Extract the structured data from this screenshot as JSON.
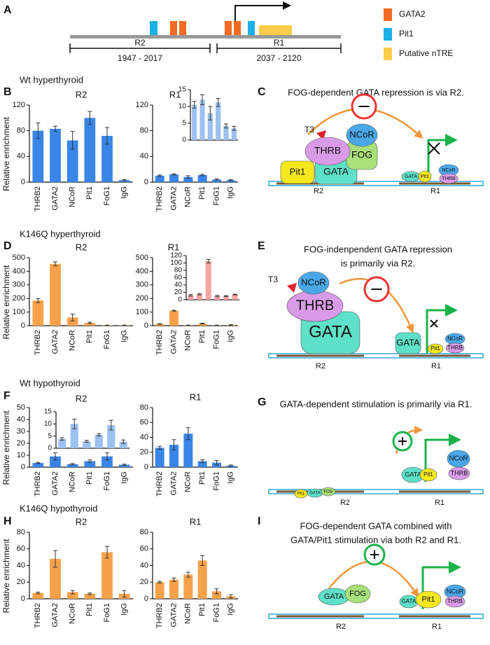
{
  "panel_labels": [
    "A",
    "B",
    "C",
    "D",
    "E",
    "F",
    "G",
    "H",
    "I"
  ],
  "row_labels": [
    "Wt hyperthyroid",
    "K146Q hyperthyroid",
    "Wt hypothyroid",
    "K146Q hypothyroid"
  ],
  "panel_a": {
    "regions": [
      {
        "name": "R2",
        "range": "1947 - 2017"
      },
      {
        "name": "R1",
        "range": "2037 - 2120"
      }
    ],
    "legend": [
      {
        "name": "GATA2",
        "color": "#f26b21"
      },
      {
        "name": "Pit1",
        "color": "#1ab0e6"
      },
      {
        "name": "Putative nTRE",
        "color": "#f9cc4a"
      }
    ]
  },
  "chart_data": [
    {
      "type": "bar",
      "title": "R2",
      "ylabel": "Relative enrichment",
      "categories": [
        "THRB2",
        "GATA2",
        "NCoR",
        "Pit1",
        "FoG1",
        "IgG"
      ],
      "values": [
        80,
        83,
        65,
        100,
        72,
        3
      ],
      "errors": [
        12,
        4,
        14,
        10,
        13,
        1
      ],
      "color": "#3a86e8",
      "ylim": [
        0,
        120
      ],
      "yticks": [
        0,
        40,
        80,
        120
      ]
    },
    {
      "type": "bar",
      "title": "R1",
      "categories": [
        "THRB2",
        "GATA2",
        "NCoR",
        "Pit1",
        "FoG1",
        "IgG"
      ],
      "values": [
        10,
        12,
        8,
        11,
        4,
        3
      ],
      "errors": [
        1,
        1,
        2,
        1,
        1,
        1
      ],
      "color": "#3a86e8",
      "ylim": [
        0,
        120
      ],
      "yticks": [
        0,
        40,
        80,
        120
      ],
      "inset": {
        "values": [
          10.5,
          12,
          8,
          11.2,
          4.2,
          3.5
        ],
        "errors": [
          1,
          1.5,
          2,
          1.2,
          0.6,
          0.6
        ],
        "color": "#9cc0f0",
        "ylim": [
          0,
          15
        ],
        "yticks": [
          0,
          5,
          10,
          15
        ]
      }
    },
    {
      "type": "bar",
      "title": "R2",
      "ylabel": "Relative enrichment",
      "categories": [
        "THRB2",
        "GATA2",
        "NCoR",
        "Pit1",
        "FoG1",
        "IgG"
      ],
      "values": [
        185,
        455,
        60,
        20,
        3,
        3
      ],
      "errors": [
        15,
        15,
        25,
        5,
        1,
        1
      ],
      "color": "#f7a24b",
      "ylim": [
        0,
        500
      ],
      "yticks": [
        0,
        100,
        200,
        300,
        400,
        500
      ]
    },
    {
      "type": "bar",
      "title": "R1",
      "categories": [
        "THRB2",
        "GATA2",
        "NCoR",
        "Pit1",
        "FoG1",
        "IgG"
      ],
      "values": [
        12,
        110,
        3,
        15,
        3,
        5
      ],
      "errors": [
        2,
        3,
        1,
        3,
        1,
        2
      ],
      "color": "#f7a24b",
      "ylim": [
        0,
        500
      ],
      "yticks": [
        0,
        100,
        200,
        300,
        400,
        500
      ],
      "inset": {
        "values": [
          12,
          15,
          105,
          10,
          10,
          14
        ],
        "errors": [
          2,
          2,
          5,
          2,
          1,
          1
        ],
        "color": "#f5a3a3",
        "ylim": [
          0,
          120
        ],
        "yticks": [
          0,
          20,
          40,
          60,
          80,
          100,
          120
        ]
      }
    },
    {
      "type": "bar",
      "title": "R2",
      "ylabel": "Relative enrichment",
      "categories": [
        "THRB2",
        "GATA2",
        "NCoR",
        "Pit1",
        "FoG1",
        "IgG"
      ],
      "values": [
        3.5,
        9,
        2.5,
        5,
        9,
        2
      ],
      "errors": [
        0.5,
        3,
        0.5,
        1,
        3,
        0.5
      ],
      "color": "#3a86e8",
      "ylim": [
        0,
        50
      ],
      "yticks": [
        0,
        10,
        20,
        30,
        40,
        50
      ],
      "inset": {
        "values": [
          3.8,
          10,
          2.8,
          5.5,
          9.5,
          2.7
        ],
        "errors": [
          0.5,
          2,
          0.4,
          0.5,
          2,
          0.7
        ],
        "color": "#9cc0f0",
        "ylim": [
          0,
          15
        ],
        "yticks": [
          0,
          5,
          10,
          15
        ]
      }
    },
    {
      "type": "bar",
      "title": "R1",
      "categories": [
        "THRB2",
        "GATA2",
        "NCoR",
        "Pit1",
        "FoG1",
        "IgG"
      ],
      "values": [
        26,
        30,
        45,
        8,
        6,
        2
      ],
      "errors": [
        2,
        7,
        8,
        2,
        3,
        1
      ],
      "color": "#3a86e8",
      "ylim": [
        0,
        80
      ],
      "yticks": [
        0,
        20,
        40,
        60,
        80
      ]
    },
    {
      "type": "bar",
      "title": "R2",
      "ylabel": "Relative enrichment",
      "categories": [
        "THRB2",
        "GATA2",
        "NCoR",
        "Pit1",
        "FoG1",
        "IgG"
      ],
      "values": [
        7,
        48,
        8,
        6,
        56,
        6
      ],
      "errors": [
        1,
        10,
        2,
        1,
        7,
        4
      ],
      "color": "#f7a24b",
      "ylim": [
        0,
        80
      ],
      "yticks": [
        0,
        20,
        40,
        60,
        80
      ]
    },
    {
      "type": "bar",
      "title": "R1",
      "categories": [
        "THRB2",
        "GATA2",
        "NCoR",
        "Pit1",
        "FoG1",
        "IgG"
      ],
      "values": [
        20,
        23,
        29,
        46,
        9,
        3
      ],
      "errors": [
        1,
        2,
        3,
        6,
        3,
        2
      ],
      "color": "#f7a24b",
      "ylim": [
        0,
        80
      ],
      "yticks": [
        0,
        20,
        40,
        60,
        80
      ]
    }
  ],
  "diagrams": [
    {
      "title": [
        "FOG-dependent GATA repression is via R2."
      ],
      "labels": [
        "Pit1",
        "GATA",
        "FOG",
        "THRB",
        "NCoR",
        "T3",
        "R2",
        "GATA",
        "Pit1",
        "NCoR",
        "THRB",
        "R1"
      ]
    },
    {
      "title": [
        "FOG-indenpendent GATA repression",
        "is primarily via R2."
      ],
      "labels": [
        "GATA",
        "THRB",
        "NCoR",
        "T3",
        "R2",
        "GATA",
        "Pit1",
        "NCoR",
        "THRB",
        "R1"
      ]
    },
    {
      "title": [
        "GATA-dependent stimulation is primarily via R1."
      ],
      "labels": [
        "Pit1",
        "GATA",
        "FOG",
        "R2",
        "GATA",
        "Pit1",
        "NCoR",
        "THRB",
        "R1"
      ]
    },
    {
      "title": [
        "FOG-dependent GATA combined with",
        "GATA/Pit1 stimulation via both R2 and R1."
      ],
      "labels": [
        "GATA",
        "FOG",
        "R2",
        "GATA",
        "Pit1",
        "NCoR",
        "THRB",
        "R1"
      ]
    }
  ]
}
